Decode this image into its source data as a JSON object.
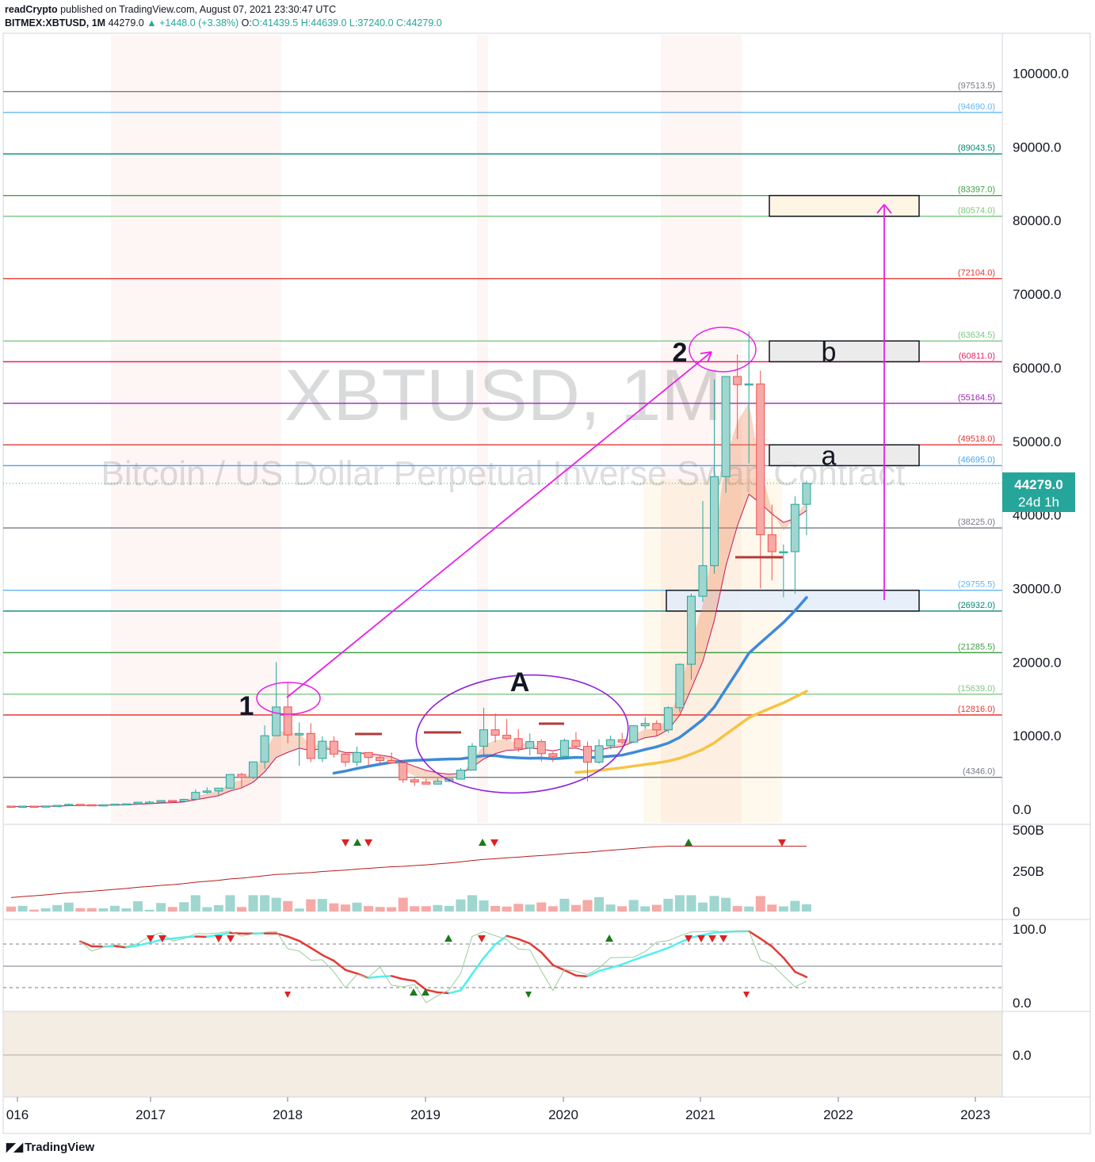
{
  "header": {
    "publisher": "readCrypto",
    "published_text": "published on TradingView.com, August 07, 2021 23:30:47 UTC",
    "symbol": "BITMEX:XBTUSD, 1M",
    "last": "44279.0",
    "change": "+1448.0 (+3.38%)",
    "ohlc_o": "O:41439.5",
    "ohlc_h": "H:44639.0",
    "ohlc_l": "L:37240.0",
    "ohlc_c": "C:44279.0"
  },
  "watermark": {
    "title": "XBTUSD, 1M",
    "subtitle": "Bitcoin / US Dollar Perpetual Inverse Swap Contract"
  },
  "footer": {
    "brand": "TradingView"
  },
  "price_badge": {
    "price": "44279.0",
    "countdown": "24d 1h"
  },
  "colors": {
    "up": "#26a69a",
    "down": "#ef5350",
    "magenta": "#e91ee9",
    "purple": "#8e24d8",
    "blue_ma": "#3d8ad9",
    "yellow_ma": "#f6c343"
  },
  "chart_data": [
    {
      "type": "candlestick",
      "pane": "price",
      "x_axis_ticks": [
        "016",
        "2017",
        "2018",
        "2019",
        "2020",
        "2021",
        "2022",
        "2023"
      ],
      "y_axis_ticks": [
        "100000.0",
        "90000.0",
        "80000.0",
        "70000.0",
        "60000.0",
        "50000.0",
        "40000.0",
        "30000.0",
        "20000.0",
        "10000.0",
        "0.0"
      ],
      "ylim": [
        0,
        105000
      ],
      "grid": false,
      "levels": [
        {
          "value": 97513.5,
          "label": "(97513.5)",
          "color": "#787b86"
        },
        {
          "value": 94690.0,
          "label": "(94690.0)",
          "color": "#64b5f6"
        },
        {
          "value": 89043.5,
          "label": "(89043.5)",
          "color": "#00897b"
        },
        {
          "value": 83397.0,
          "label": "(83397.0)",
          "color": "#43a047"
        },
        {
          "value": 80574.0,
          "label": "(80574.0)",
          "color": "#81c784"
        },
        {
          "value": 72104.0,
          "label": "(72104.0)",
          "color": "#e53935"
        },
        {
          "value": 63634.5,
          "label": "(63634.5)",
          "color": "#81c784"
        },
        {
          "value": 60811.0,
          "label": "(60811.0)",
          "color": "#e91e63"
        },
        {
          "value": 55164.5,
          "label": "(55164.5)",
          "color": "#9c27b0"
        },
        {
          "value": 49518.0,
          "label": "(49518.0)",
          "color": "#e53935"
        },
        {
          "value": 46695.0,
          "label": "(46695.0)",
          "color": "#42a5f5"
        },
        {
          "value": 38225.0,
          "label": "(38225.0)",
          "color": "#787b86"
        },
        {
          "value": 29755.5,
          "label": "(29755.5)",
          "color": "#64b5f6"
        },
        {
          "value": 26932.0,
          "label": "(26932.0)",
          "color": "#00897b"
        },
        {
          "value": 21285.5,
          "label": "(21285.5)",
          "color": "#43a047"
        },
        {
          "value": 15639.0,
          "label": "(15639.0)",
          "color": "#81c784"
        },
        {
          "value": 12816.0,
          "label": "(12816.0)",
          "color": "#e53935"
        },
        {
          "value": 4346.0,
          "label": "(4346.0)",
          "color": "#787b86"
        }
      ],
      "zones": [
        {
          "label": "b",
          "from": 60811.0,
          "to": 63634.5
        },
        {
          "label": "a",
          "from": 46695.0,
          "to": 49518.0
        },
        {
          "label": "",
          "from": 26932.0,
          "to": 29755.5
        },
        {
          "label": "",
          "from": 80574.0,
          "to": 83397.0
        }
      ],
      "annotations": [
        "1",
        "2",
        "A",
        "a",
        "b"
      ],
      "candles_start": "2016-01",
      "candles": [
        [
          430,
          440,
          350,
          370
        ],
        [
          370,
          440,
          360,
          430
        ],
        [
          430,
          440,
          400,
          416
        ],
        [
          416,
          470,
          410,
          448
        ],
        [
          448,
          550,
          440,
          530
        ],
        [
          530,
          780,
          520,
          670
        ],
        [
          670,
          700,
          470,
          620
        ],
        [
          620,
          630,
          550,
          575
        ],
        [
          575,
          620,
          570,
          610
        ],
        [
          610,
          720,
          600,
          700
        ],
        [
          700,
          750,
          690,
          740
        ],
        [
          740,
          980,
          730,
          960
        ],
        [
          960,
          1150,
          750,
          965
        ],
        [
          965,
          1220,
          920,
          1190
        ],
        [
          1190,
          1250,
          890,
          1075
        ],
        [
          1075,
          1440,
          1070,
          1350
        ],
        [
          1350,
          2700,
          1320,
          2300
        ],
        [
          2300,
          2980,
          2100,
          2490
        ],
        [
          2490,
          2900,
          1900,
          2870
        ],
        [
          2870,
          4700,
          2850,
          4730
        ],
        [
          4730,
          4980,
          2970,
          4340
        ],
        [
          4340,
          6400,
          4100,
          6440
        ],
        [
          6440,
          11400,
          5500,
          10000
        ],
        [
          10000,
          20000,
          10000,
          13900
        ],
        [
          13900,
          17200,
          9000,
          10100
        ],
        [
          10100,
          11800,
          5900,
          10300
        ],
        [
          10300,
          11700,
          6400,
          6900
        ],
        [
          6900,
          9900,
          6400,
          9250
        ],
        [
          9250,
          9900,
          7000,
          7500
        ],
        [
          7500,
          7770,
          5800,
          6400
        ],
        [
          6400,
          8500,
          5850,
          7720
        ],
        [
          7720,
          7750,
          5880,
          7030
        ],
        [
          7030,
          7420,
          6100,
          6630
        ],
        [
          6630,
          7700,
          6200,
          6310
        ],
        [
          6310,
          6550,
          3600,
          4000
        ],
        [
          4000,
          4250,
          3150,
          3700
        ],
        [
          3700,
          4100,
          3400,
          3420
        ],
        [
          3420,
          4200,
          3380,
          3800
        ],
        [
          3800,
          4100,
          3700,
          4100
        ],
        [
          4100,
          5600,
          4080,
          5320
        ],
        [
          5320,
          9000,
          5300,
          8570
        ],
        [
          8570,
          13800,
          7460,
          10800
        ],
        [
          10800,
          13000,
          9100,
          10060
        ],
        [
          10060,
          12300,
          9400,
          9600
        ],
        [
          9600,
          10900,
          7800,
          8300
        ],
        [
          8300,
          10300,
          7300,
          9200
        ],
        [
          9200,
          9500,
          6500,
          7560
        ],
        [
          7560,
          7750,
          6400,
          7190
        ],
        [
          7190,
          9600,
          6900,
          9350
        ],
        [
          9350,
          10500,
          8400,
          8550
        ],
        [
          8550,
          9200,
          3800,
          6400
        ],
        [
          6400,
          9500,
          6200,
          8630
        ],
        [
          8630,
          10000,
          8200,
          9450
        ],
        [
          9450,
          10400,
          8800,
          9130
        ],
        [
          9130,
          11400,
          9000,
          11350
        ],
        [
          11350,
          12500,
          10900,
          11660
        ],
        [
          11660,
          12100,
          9900,
          10780
        ],
        [
          10780,
          14000,
          10400,
          13800
        ],
        [
          13800,
          19800,
          13200,
          19700
        ],
        [
          19700,
          29300,
          17600,
          28950
        ],
        [
          28950,
          41900,
          28200,
          33100
        ],
        [
          33100,
          58400,
          32000,
          45200
        ],
        [
          45200,
          58400,
          43000,
          58800
        ],
        [
          58800,
          61800,
          50300,
          57700
        ],
        [
          57700,
          64900,
          47000,
          57800
        ],
        [
          57800,
          59600,
          30000,
          37300
        ],
        [
          37300,
          41400,
          31100,
          35000
        ],
        [
          35000,
          36000,
          28800,
          35000
        ],
        [
          35000,
          42500,
          29300,
          41440
        ],
        [
          41440,
          44640,
          37240,
          44279
        ]
      ]
    },
    {
      "type": "bar",
      "pane": "volume",
      "y_axis_ticks": [
        "500B",
        "250B",
        "0"
      ],
      "ylim": [
        0,
        500
      ]
    },
    {
      "type": "line",
      "pane": "oscillator",
      "y_axis_ticks": [
        "100.0",
        "0.0"
      ],
      "ylim": [
        0,
        100
      ]
    },
    {
      "type": "line",
      "pane": "bottom",
      "y_axis_ticks": [
        "0.0"
      ]
    }
  ]
}
